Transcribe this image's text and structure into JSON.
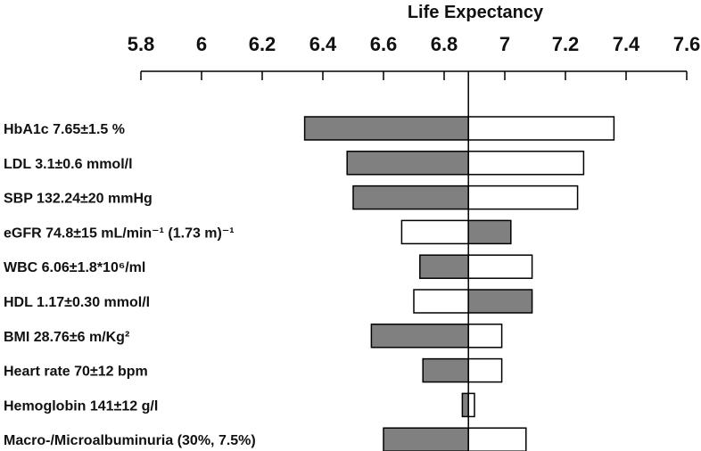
{
  "chart_data": {
    "type": "tornado",
    "title": "Life Expectancy",
    "baseline": 6.88,
    "xlim": [
      5.8,
      7.6
    ],
    "ticks": [
      "5.8",
      "6",
      "6.2",
      "6.4",
      "6.6",
      "6.8",
      "7",
      "7.2",
      "7.4",
      "7.6"
    ],
    "tick_values": [
      5.8,
      6.0,
      6.2,
      6.4,
      6.6,
      6.8,
      7.0,
      7.2,
      7.4,
      7.6
    ],
    "colors": {
      "filled": "#808080",
      "outline": "#000000",
      "empty": "#ffffff"
    },
    "rows": [
      {
        "label": "HbA1c 7.65±1.5 %",
        "low": 6.34,
        "high": 7.36,
        "filled": "low"
      },
      {
        "label": "LDL 3.1±0.6 mmol/l",
        "low": 6.48,
        "high": 7.26,
        "filled": "low"
      },
      {
        "label": "SBP 132.24±20 mmHg",
        "low": 6.5,
        "high": 7.24,
        "filled": "low"
      },
      {
        "label": "eGFR 74.8±15 mL/min⁻¹ (1.73 m)⁻¹",
        "low": 6.66,
        "high": 7.02,
        "filled": "high"
      },
      {
        "label": "WBC 6.06±1.8*10⁶/ml",
        "low": 6.72,
        "high": 7.09,
        "filled": "low"
      },
      {
        "label": "HDL 1.17±0.30 mmol/l",
        "low": 6.7,
        "high": 7.09,
        "filled": "high"
      },
      {
        "label": "BMI 28.76±6 m/Kg²",
        "low": 6.56,
        "high": 6.99,
        "filled": "low"
      },
      {
        "label": "Heart rate 70±12 bpm",
        "low": 6.73,
        "high": 6.99,
        "filled": "low"
      },
      {
        "label": "Hemoglobin 141±12 g/l",
        "low": 6.86,
        "high": 6.9,
        "filled": "low"
      },
      {
        "label": "Macro-/Microalbuminuria (30%, 7.5%)",
        "low": 6.6,
        "high": 7.07,
        "filled": "low"
      }
    ]
  }
}
